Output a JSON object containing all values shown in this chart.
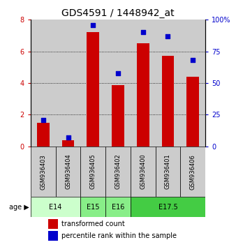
{
  "title": "GDS4591 / 1448942_at",
  "samples": [
    "GSM936403",
    "GSM936404",
    "GSM936405",
    "GSM936402",
    "GSM936400",
    "GSM936401",
    "GSM936406"
  ],
  "bar_values": [
    1.5,
    0.4,
    7.2,
    3.85,
    6.5,
    5.7,
    4.4
  ],
  "percentile_values": [
    21,
    7,
    96,
    58,
    90,
    87,
    68
  ],
  "bar_color": "#cc0000",
  "dot_color": "#0000cc",
  "ylim_left": [
    0,
    8
  ],
  "ylim_right": [
    0,
    100
  ],
  "yticks_left": [
    0,
    2,
    4,
    6,
    8
  ],
  "yticks_right": [
    0,
    25,
    50,
    75,
    100
  ],
  "yticklabels_right": [
    "0",
    "25",
    "50",
    "75",
    "100%"
  ],
  "grid_color": "#000000",
  "age_groups": [
    {
      "label": "E14",
      "start": 0,
      "end": 2,
      "color": "#ccffcc"
    },
    {
      "label": "E15",
      "start": 2,
      "end": 3,
      "color": "#88ee88"
    },
    {
      "label": "E16",
      "start": 3,
      "end": 4,
      "color": "#88ee88"
    },
    {
      "label": "E17.5",
      "start": 4,
      "end": 7,
      "color": "#44cc44"
    }
  ],
  "sample_bg_color": "#cccccc",
  "legend_entries": [
    "transformed count",
    "percentile rank within the sample"
  ],
  "xlabel_age": "age",
  "title_fontsize": 10,
  "tick_fontsize": 7,
  "label_fontsize": 8,
  "sample_fontsize": 6
}
